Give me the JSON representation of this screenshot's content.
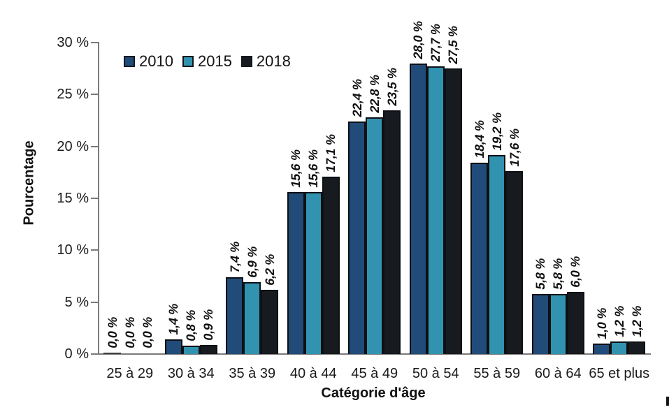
{
  "chart_data": {
    "type": "bar",
    "title": "",
    "xlabel": "Catégorie d'âge",
    "ylabel": "Pourcentage",
    "categories": [
      "25 à 29",
      "30 à 34",
      "35 à 39",
      "40 à 44",
      "45 à 49",
      "50 à 54",
      "55 à 59",
      "60 à 64",
      "65 et plus"
    ],
    "series": [
      {
        "name": "2010",
        "color": "#214b79",
        "values": [
          0.0,
          1.4,
          7.4,
          15.6,
          22.4,
          28.0,
          18.4,
          5.8,
          1.0
        ],
        "labels": [
          "0,0 %",
          "1,4 %",
          "7,4 %",
          "15,6 %",
          "22,4 %",
          "28,0 %",
          "18,4 %",
          "5,8 %",
          "1,0 %"
        ]
      },
      {
        "name": "2015",
        "color": "#3193b0",
        "values": [
          0.0,
          0.8,
          6.9,
          15.6,
          22.8,
          27.7,
          19.2,
          5.8,
          1.2
        ],
        "labels": [
          "0,0 %",
          "0,8 %",
          "6,9 %",
          "15,6 %",
          "22,8 %",
          "27,7 %",
          "19,2 %",
          "5,8 %",
          "1,2 %"
        ]
      },
      {
        "name": "2018",
        "color": "#171a1f",
        "values": [
          0.0,
          0.9,
          6.2,
          17.1,
          23.5,
          27.5,
          17.6,
          6.0,
          1.2
        ],
        "labels": [
          "0,0 %",
          "0,9 %",
          "6,2 %",
          "17,1 %",
          "23,5 %",
          "27,5 %",
          "17,6 %",
          "6,0 %",
          "1,2 %"
        ]
      }
    ],
    "ylim": [
      0,
      30
    ],
    "yticks": [
      "0 %",
      "5 %",
      "10 %",
      "15 %",
      "20 %",
      "25 %",
      "30 %"
    ],
    "grid": false,
    "legend_position": "top-left-inside",
    "axis_color": "#7a7a7a",
    "bar_outline_color": "#0e1014",
    "text_color": "#1a1a1a",
    "value_label_rotation_deg": -90
  }
}
